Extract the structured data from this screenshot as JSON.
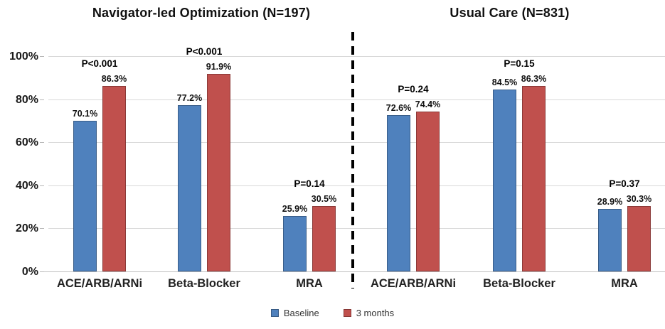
{
  "chart_data": {
    "type": "bar",
    "unit": "%",
    "ylim": [
      0,
      100
    ],
    "y_tick_values": [
      0,
      20,
      40,
      60,
      80,
      100
    ],
    "y_tick_labels": [
      "0%",
      "20%",
      "40%",
      "60%",
      "80%",
      "100%"
    ],
    "grid": true,
    "divider": {
      "style": "dashed-vertical",
      "color": "#000000"
    },
    "series_colors": [
      "#4F81BD",
      "#C0504D"
    ],
    "legend": {
      "position": "bottom-center",
      "items": [
        {
          "label": "Baseline",
          "color": "#4F81BD"
        },
        {
          "label": "3 months",
          "color": "#C0504D"
        }
      ]
    },
    "panels": [
      {
        "title": "Navigator-led Optimization (N=197)",
        "categories": [
          "ACE/ARB/ARNi",
          "Beta-Blocker",
          "MRA"
        ],
        "series": [
          {
            "name": "Baseline",
            "values": [
              70.1,
              77.2,
              25.9
            ]
          },
          {
            "name": "3 months",
            "values": [
              86.3,
              91.9,
              30.5
            ]
          }
        ],
        "value_labels": [
          [
            "70.1%",
            "86.3%"
          ],
          [
            "77.2%",
            "91.9%"
          ],
          [
            "25.9%",
            "30.5%"
          ]
        ],
        "p_values": [
          "P<0.001",
          "P<0.001",
          "P=0.14"
        ]
      },
      {
        "title": "Usual Care (N=831)",
        "categories": [
          "ACE/ARB/ARNi",
          "Beta-Blocker",
          "MRA"
        ],
        "series": [
          {
            "name": "Baseline",
            "values": [
              72.6,
              84.5,
              28.9
            ]
          },
          {
            "name": "3 months",
            "values": [
              74.4,
              86.3,
              30.3
            ]
          }
        ],
        "value_labels": [
          [
            "72.6%",
            "74.4%"
          ],
          [
            "84.5%",
            "86.3%"
          ],
          [
            "28.9%",
            "30.3%"
          ]
        ],
        "p_values": [
          "P=0.24",
          "P=0.15",
          "P=0.37"
        ]
      }
    ]
  }
}
